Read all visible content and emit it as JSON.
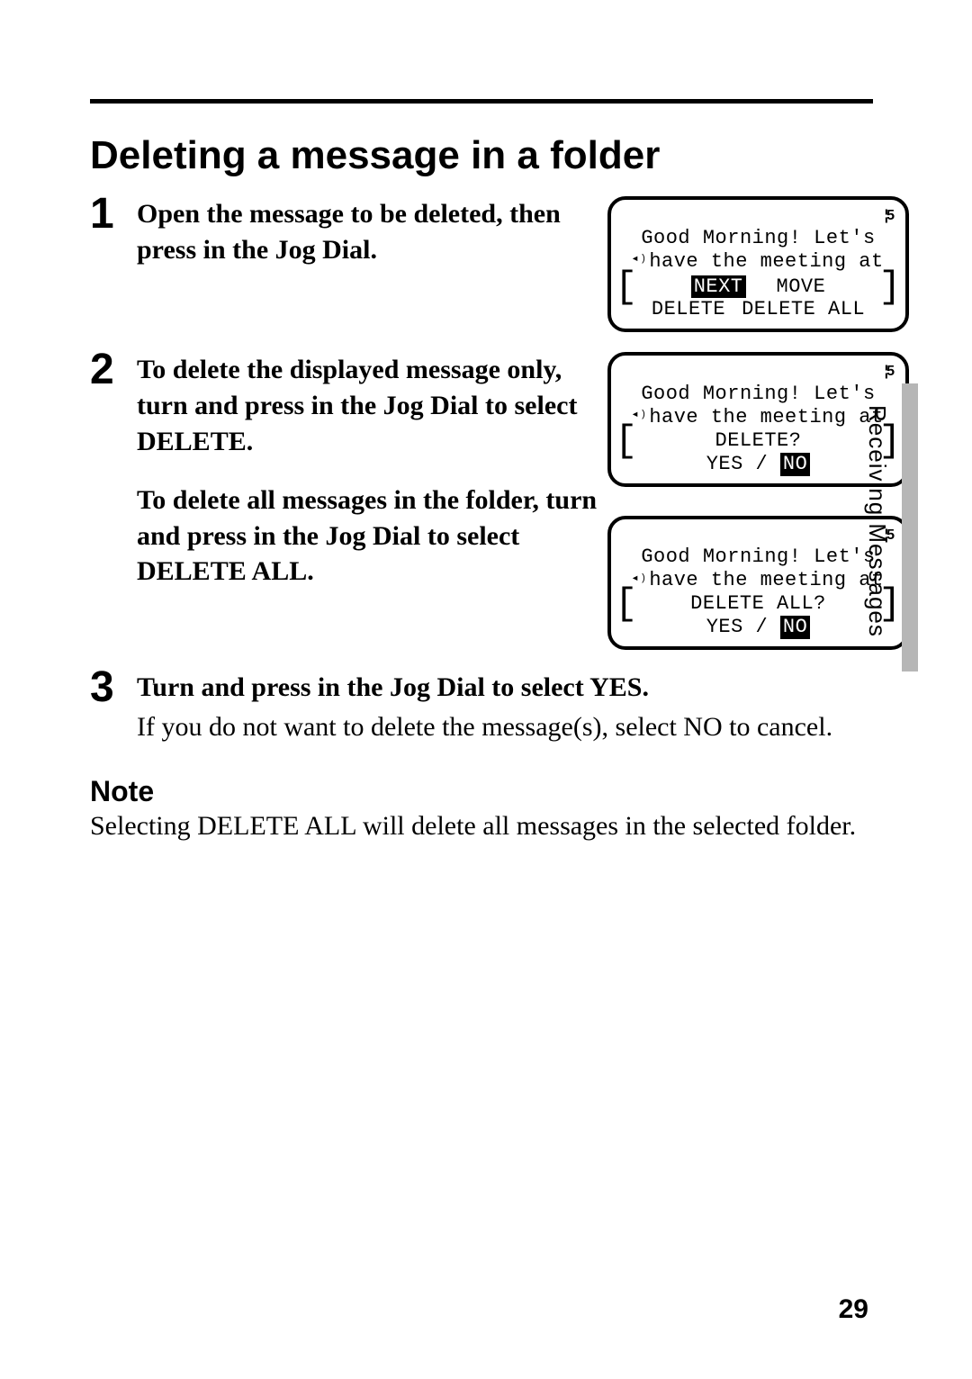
{
  "page": {
    "title": "Deleting a message in a folder",
    "number": "29",
    "side_tab": "Receiving Messages",
    "colors": {
      "text": "#000000",
      "background": "#ffffff",
      "side_bar": "#b6b6b6"
    }
  },
  "steps": {
    "s1": {
      "num": "1",
      "text": "Open the message to be deleted, then press in the Jog Dial."
    },
    "s2": {
      "num": "2",
      "text_a": "To delete the displayed message only, turn and press in the Jog Dial to select DELETE.",
      "text_b": "To delete all messages in the folder, turn and press in the Jog Dial to select DELETE ALL."
    },
    "s3": {
      "num": "3",
      "text": "Turn and press in the Jog Dial to select YES.",
      "note": "If you do not want to delete the message(s), select NO to cancel."
    }
  },
  "note": {
    "heading": "Note",
    "body": "Selecting DELETE ALL will delete all messages in the selected folder."
  },
  "screens": {
    "common": {
      "count_glyph": "¦5",
      "msg_line1": "Good Morning! Let's",
      "msg_line2": "have the meeting at"
    },
    "screen1": {
      "menu_next": "NEXT",
      "menu_move": "MOVE",
      "menu_delete": "DELETE",
      "menu_delete_all": "DELETE ALL"
    },
    "screen2": {
      "prompt": "DELETE?",
      "yes": "YES",
      "sep": " / ",
      "no": "NO"
    },
    "screen3": {
      "prompt": "DELETE ALL?",
      "yes": "YES",
      "sep": " / ",
      "no": "NO"
    }
  }
}
